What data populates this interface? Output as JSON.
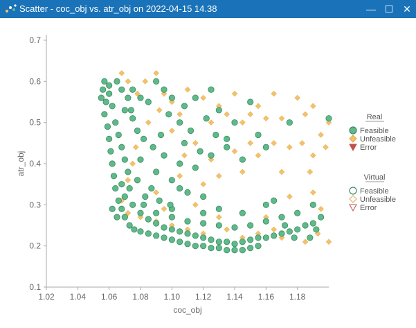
{
  "window": {
    "title": "Scatter - coc_obj vs. atr_obj on 2022-04-15 14.38",
    "icon": "scatter-icon",
    "controls": {
      "minimize": "—",
      "maximize": "☐",
      "close": "✕"
    }
  },
  "colors": {
    "titlebar": "#1a73b8",
    "feasible": "#5fb98a",
    "feasible_edge": "#3a8c62",
    "unfeasible": "#f2c26b",
    "error": "#c0504d"
  },
  "legend": {
    "real_title": "Real",
    "real_items": [
      "Feasible",
      "Unfeasible",
      "Error"
    ],
    "virtual_title": "Virtual",
    "virtual_items": [
      "Feasible",
      "Unfeasible",
      "Error"
    ]
  },
  "chart_data": {
    "type": "scatter",
    "xlabel": "coc_obj",
    "ylabel": "atr_obj",
    "xlim": [
      1.02,
      1.2
    ],
    "ylim": [
      0.1,
      0.7
    ],
    "xticks": [
      "1.02",
      "1.04",
      "1.06",
      "1.08",
      "1.10",
      "1.12",
      "1.14",
      "1.16",
      "1.18"
    ],
    "yticks": [
      "0.1",
      "0.2",
      "0.3",
      "0.4",
      "0.5",
      "0.6",
      "0.7"
    ],
    "grid": false,
    "legend_position": "right",
    "series": [
      {
        "name": "Feasible",
        "group": "Real",
        "marker": "circle",
        "points": [
          [
            1.056,
            0.58
          ],
          [
            1.058,
            0.55
          ],
          [
            1.057,
            0.52
          ],
          [
            1.059,
            0.49
          ],
          [
            1.06,
            0.46
          ],
          [
            1.061,
            0.43
          ],
          [
            1.062,
            0.4
          ],
          [
            1.063,
            0.37
          ],
          [
            1.064,
            0.34
          ],
          [
            1.066,
            0.31
          ],
          [
            1.068,
            0.29
          ],
          [
            1.07,
            0.27
          ],
          [
            1.073,
            0.25
          ],
          [
            1.076,
            0.24
          ],
          [
            1.08,
            0.235
          ],
          [
            1.085,
            0.23
          ],
          [
            1.09,
            0.225
          ],
          [
            1.095,
            0.22
          ],
          [
            1.1,
            0.215
          ],
          [
            1.105,
            0.21
          ],
          [
            1.11,
            0.205
          ],
          [
            1.115,
            0.2
          ],
          [
            1.12,
            0.2
          ],
          [
            1.125,
            0.195
          ],
          [
            1.13,
            0.195
          ],
          [
            1.135,
            0.19
          ],
          [
            1.14,
            0.19
          ],
          [
            1.145,
            0.19
          ],
          [
            1.15,
            0.195
          ],
          [
            1.155,
            0.2
          ],
          [
            1.06,
            0.57
          ],
          [
            1.062,
            0.54
          ],
          [
            1.064,
            0.5
          ],
          [
            1.066,
            0.47
          ],
          [
            1.068,
            0.44
          ],
          [
            1.07,
            0.41
          ],
          [
            1.072,
            0.38
          ],
          [
            1.068,
            0.35
          ],
          [
            1.07,
            0.32
          ],
          [
            1.075,
            0.3
          ],
          [
            1.08,
            0.28
          ],
          [
            1.085,
            0.265
          ],
          [
            1.09,
            0.255
          ],
          [
            1.095,
            0.245
          ],
          [
            1.1,
            0.24
          ],
          [
            1.105,
            0.235
          ],
          [
            1.11,
            0.23
          ],
          [
            1.115,
            0.225
          ],
          [
            1.12,
            0.22
          ],
          [
            1.125,
            0.215
          ],
          [
            1.13,
            0.21
          ],
          [
            1.135,
            0.21
          ],
          [
            1.14,
            0.205
          ],
          [
            1.145,
            0.21
          ],
          [
            1.15,
            0.215
          ],
          [
            1.155,
            0.22
          ],
          [
            1.16,
            0.22
          ],
          [
            1.165,
            0.225
          ],
          [
            1.17,
            0.23
          ],
          [
            1.175,
            0.235
          ],
          [
            1.18,
            0.24
          ],
          [
            1.185,
            0.25
          ],
          [
            1.19,
            0.255
          ],
          [
            1.082,
            0.3
          ],
          [
            1.09,
            0.28
          ],
          [
            1.1,
            0.27
          ],
          [
            1.11,
            0.26
          ],
          [
            1.12,
            0.255
          ],
          [
            1.13,
            0.25
          ],
          [
            1.14,
            0.245
          ],
          [
            1.15,
            0.25
          ],
          [
            1.16,
            0.26
          ],
          [
            1.1,
            0.29
          ],
          [
            1.12,
            0.28
          ],
          [
            1.13,
            0.29
          ],
          [
            1.145,
            0.28
          ],
          [
            1.16,
            0.3
          ],
          [
            1.17,
            0.27
          ],
          [
            1.18,
            0.28
          ],
          [
            1.19,
            0.3
          ],
          [
            1.195,
            0.27
          ],
          [
            1.172,
            0.25
          ],
          [
            1.178,
            0.22
          ],
          [
            1.188,
            0.22
          ],
          [
            1.192,
            0.24
          ],
          [
            1.075,
            0.58
          ],
          [
            1.08,
            0.56
          ],
          [
            1.085,
            0.55
          ],
          [
            1.07,
            0.53
          ],
          [
            1.075,
            0.51
          ],
          [
            1.078,
            0.48
          ],
          [
            1.082,
            0.46
          ],
          [
            1.088,
            0.44
          ],
          [
            1.093,
            0.47
          ],
          [
            1.098,
            0.52
          ],
          [
            1.1,
            0.56
          ],
          [
            1.105,
            0.5
          ],
          [
            1.108,
            0.45
          ],
          [
            1.112,
            0.48
          ],
          [
            1.118,
            0.43
          ],
          [
            1.125,
            0.58
          ],
          [
            1.13,
            0.53
          ],
          [
            1.135,
            0.46
          ],
          [
            1.14,
            0.5
          ],
          [
            1.15,
            0.55
          ],
          [
            1.155,
            0.47
          ],
          [
            1.16,
            0.44
          ],
          [
            1.175,
            0.5
          ],
          [
            1.2,
            0.51
          ],
          [
            1.08,
            0.41
          ],
          [
            1.09,
            0.38
          ],
          [
            1.095,
            0.42
          ],
          [
            1.1,
            0.36
          ],
          [
            1.105,
            0.34
          ],
          [
            1.11,
            0.33
          ],
          [
            1.12,
            0.32
          ],
          [
            1.09,
            0.6
          ],
          [
            1.095,
            0.58
          ],
          [
            1.108,
            0.54
          ],
          [
            1.115,
            0.56
          ],
          [
            1.122,
            0.51
          ],
          [
            1.128,
            0.47
          ],
          [
            1.145,
            0.41
          ],
          [
            1.105,
            0.4
          ],
          [
            1.115,
            0.39
          ],
          [
            1.125,
            0.42
          ],
          [
            1.135,
            0.44
          ],
          [
            1.165,
            0.31
          ],
          [
            1.073,
            0.34
          ],
          [
            1.078,
            0.36
          ],
          [
            1.083,
            0.32
          ],
          [
            1.087,
            0.34
          ],
          [
            1.092,
            0.31
          ],
          [
            1.099,
            0.3
          ],
          [
            1.062,
            0.29
          ],
          [
            1.065,
            0.27
          ],
          [
            1.055,
            0.56
          ],
          [
            1.057,
            0.6
          ],
          [
            1.06,
            0.59
          ],
          [
            1.065,
            0.6
          ],
          [
            1.068,
            0.58
          ],
          [
            1.072,
            0.56
          ],
          [
            1.074,
            0.53
          ]
        ]
      },
      {
        "name": "Unfeasible",
        "group": "Real",
        "marker": "diamond",
        "points": [
          [
            1.068,
            0.62
          ],
          [
            1.072,
            0.6
          ],
          [
            1.078,
            0.57
          ],
          [
            1.083,
            0.6
          ],
          [
            1.09,
            0.62
          ],
          [
            1.095,
            0.57
          ],
          [
            1.1,
            0.55
          ],
          [
            1.105,
            0.52
          ],
          [
            1.11,
            0.58
          ],
          [
            1.12,
            0.56
          ],
          [
            1.125,
            0.5
          ],
          [
            1.13,
            0.54
          ],
          [
            1.135,
            0.52
          ],
          [
            1.14,
            0.57
          ],
          [
            1.145,
            0.5
          ],
          [
            1.15,
            0.52
          ],
          [
            1.155,
            0.54
          ],
          [
            1.16,
            0.51
          ],
          [
            1.165,
            0.57
          ],
          [
            1.17,
            0.51
          ],
          [
            1.175,
            0.5
          ],
          [
            1.18,
            0.56
          ],
          [
            1.185,
            0.52
          ],
          [
            1.19,
            0.54
          ],
          [
            1.195,
            0.47
          ],
          [
            1.2,
            0.5
          ],
          [
            1.165,
            0.45
          ],
          [
            1.175,
            0.44
          ],
          [
            1.183,
            0.45
          ],
          [
            1.19,
            0.42
          ],
          [
            1.198,
            0.44
          ],
          [
            1.17,
            0.38
          ],
          [
            1.188,
            0.38
          ],
          [
            1.175,
            0.32
          ],
          [
            1.19,
            0.33
          ],
          [
            1.195,
            0.29
          ],
          [
            1.2,
            0.21
          ],
          [
            1.165,
            0.24
          ],
          [
            1.155,
            0.23
          ],
          [
            1.145,
            0.22
          ],
          [
            1.135,
            0.24
          ],
          [
            1.12,
            0.23
          ],
          [
            1.11,
            0.24
          ],
          [
            1.1,
            0.25
          ],
          [
            1.09,
            0.26
          ],
          [
            1.08,
            0.27
          ],
          [
            1.072,
            0.28
          ],
          [
            1.068,
            0.31
          ],
          [
            1.072,
            0.36
          ],
          [
            1.075,
            0.4
          ],
          [
            1.077,
            0.44
          ],
          [
            1.085,
            0.5
          ],
          [
            1.092,
            0.53
          ],
          [
            1.1,
            0.48
          ],
          [
            1.108,
            0.42
          ],
          [
            1.115,
            0.45
          ],
          [
            1.125,
            0.41
          ],
          [
            1.14,
            0.43
          ],
          [
            1.15,
            0.45
          ],
          [
            1.155,
            0.42
          ],
          [
            1.145,
            0.38
          ],
          [
            1.13,
            0.37
          ],
          [
            1.12,
            0.35
          ],
          [
            1.105,
            0.37
          ],
          [
            1.09,
            0.33
          ],
          [
            1.095,
            0.29
          ],
          [
            1.115,
            0.3
          ],
          [
            1.13,
            0.27
          ],
          [
            1.16,
            0.27
          ],
          [
            1.17,
            0.22
          ],
          [
            1.185,
            0.21
          ],
          [
            1.193,
            0.23
          ]
        ]
      },
      {
        "name": "Error",
        "group": "Real",
        "marker": "triangle",
        "points": []
      }
    ]
  }
}
